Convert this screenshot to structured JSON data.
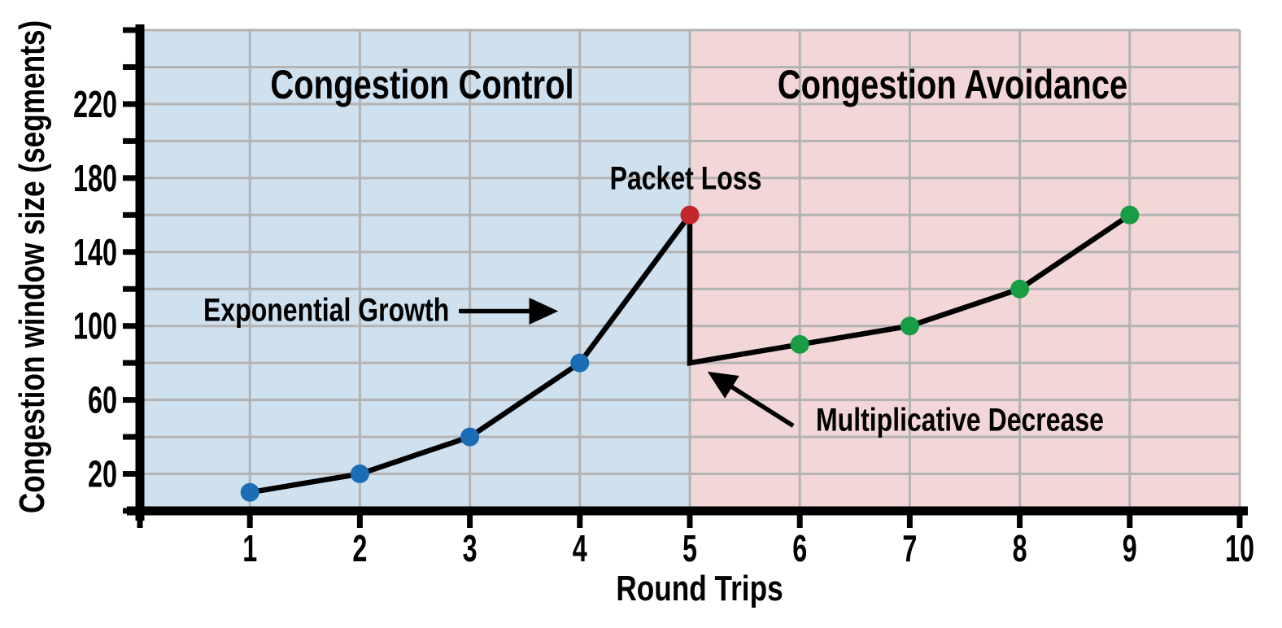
{
  "chart_data": {
    "type": "line",
    "title": "",
    "xlabel": "Round Trips",
    "ylabel": "Congestion window size (segments)",
    "xlim": [
      0,
      10
    ],
    "ylim": [
      0,
      260
    ],
    "grid": true,
    "x_ticks": [
      1,
      2,
      3,
      4,
      5,
      6,
      7,
      8,
      9,
      10
    ],
    "y_gridline_step": 20,
    "y_labeled_ticks": [
      20,
      60,
      100,
      140,
      180,
      220
    ],
    "regions": [
      {
        "name": "congestion-control",
        "label": "Congestion Control",
        "x_start": 0,
        "x_end": 5,
        "fill": "#cfe0ef"
      },
      {
        "name": "congestion-avoidance",
        "label": "Congestion Avoidance",
        "x_start": 5,
        "x_end": 10,
        "fill": "#f3d6d8"
      }
    ],
    "series": [
      {
        "name": "congestion-window-size",
        "color": "#000000",
        "points": [
          [
            1,
            10
          ],
          [
            2,
            20
          ],
          [
            3,
            40
          ],
          [
            4,
            80
          ],
          [
            5,
            160
          ],
          [
            5,
            80
          ],
          [
            6,
            90
          ],
          [
            7,
            100
          ],
          [
            8,
            120
          ],
          [
            9,
            160
          ]
        ]
      }
    ],
    "markers": [
      {
        "x": 1,
        "y": 10,
        "color": "#1b6db5",
        "phase": "slow-start"
      },
      {
        "x": 2,
        "y": 20,
        "color": "#1b6db5",
        "phase": "slow-start"
      },
      {
        "x": 3,
        "y": 40,
        "color": "#1b6db5",
        "phase": "slow-start"
      },
      {
        "x": 4,
        "y": 80,
        "color": "#1b6db5",
        "phase": "slow-start"
      },
      {
        "x": 5,
        "y": 160,
        "color": "#c2272d",
        "phase": "packet-loss"
      },
      {
        "x": 6,
        "y": 90,
        "color": "#189c44",
        "phase": "congestion-avoidance"
      },
      {
        "x": 7,
        "y": 100,
        "color": "#189c44",
        "phase": "congestion-avoidance"
      },
      {
        "x": 8,
        "y": 120,
        "color": "#189c44",
        "phase": "congestion-avoidance"
      },
      {
        "x": 9,
        "y": 160,
        "color": "#189c44",
        "phase": "congestion-avoidance"
      }
    ],
    "annotations": [
      {
        "name": "packet-loss",
        "text": "Packet Loss",
        "points_at": [
          5,
          160
        ]
      },
      {
        "name": "exponential-growth",
        "text": "Exponential Growth",
        "arrow": {
          "from": [
            2.9,
            108
          ],
          "to": [
            3.58,
            108
          ]
        }
      },
      {
        "name": "multiplicative-decrease",
        "text": "Multiplicative Decrease",
        "arrow": {
          "from": [
            5.94,
            46
          ],
          "to": [
            5.35,
            68.2
          ]
        }
      }
    ],
    "colors": {
      "axis": "#000000",
      "gridline": "#b3b3b3",
      "line": "#000000",
      "background": "#ffffff"
    }
  }
}
